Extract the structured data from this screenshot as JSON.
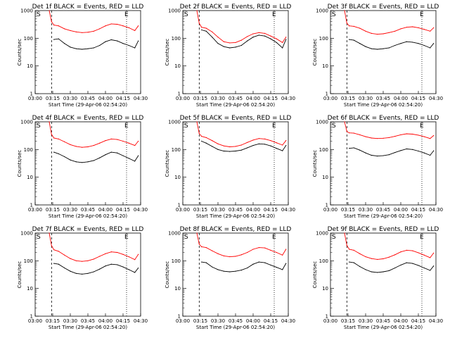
{
  "figure": {
    "ylabel": "Counts/sec",
    "xlabel": "Start Time (29-Apr-06 02:54:20)",
    "x_tick_labels": [
      "03:00",
      "03:15",
      "03:30",
      "03:45",
      "04:00",
      "04:15",
      "04:30"
    ],
    "y_tick_labels": [
      "1",
      "10",
      "100",
      "1000"
    ],
    "series_colors": {
      "events": "#000000",
      "lld": "#ff0000"
    },
    "marker_S": "S",
    "marker_E": "E"
  },
  "chart_data": [
    {
      "type": "line",
      "title": "Det 1f BLACK = Events, RED = LLD",
      "x_unit": "minutes after 03:00",
      "ylim": [
        1,
        1000
      ],
      "xlim": [
        0,
        90
      ],
      "log_y": true,
      "x": [
        12,
        14,
        16,
        20,
        25,
        30,
        35,
        40,
        45,
        50,
        55,
        60,
        65,
        70,
        75,
        80,
        85,
        88
      ],
      "series": [
        {
          "name": "Events",
          "values": [
            null,
            null,
            90,
            95,
            65,
            48,
            42,
            40,
            42,
            45,
            55,
            75,
            88,
            80,
            65,
            55,
            45,
            80
          ]
        },
        {
          "name": "LLD",
          "values": [
            1000,
            400,
            300,
            280,
            220,
            190,
            170,
            160,
            165,
            180,
            220,
            280,
            330,
            320,
            280,
            240,
            190,
            280
          ]
        }
      ]
    },
    {
      "type": "line",
      "title": "Det 2f BLACK = Events, RED = LLD",
      "x_unit": "minutes after 03:00",
      "ylim": [
        1,
        1000
      ],
      "xlim": [
        0,
        90
      ],
      "log_y": true,
      "x": [
        12,
        14,
        16,
        20,
        25,
        30,
        35,
        40,
        45,
        50,
        55,
        60,
        65,
        70,
        75,
        80,
        85,
        88
      ],
      "series": [
        {
          "name": "Events",
          "values": [
            null,
            null,
            200,
            180,
            110,
            65,
            50,
            45,
            48,
            55,
            80,
            110,
            130,
            120,
            95,
            70,
            45,
            90
          ]
        },
        {
          "name": "LLD",
          "values": [
            1000,
            350,
            250,
            230,
            170,
            110,
            75,
            68,
            70,
            85,
            115,
            145,
            160,
            150,
            120,
            95,
            70,
            110
          ]
        }
      ]
    },
    {
      "type": "line",
      "title": "Det 3f BLACK = Events, RED = LLD",
      "x_unit": "minutes after 03:00",
      "ylim": [
        1,
        1000
      ],
      "xlim": [
        0,
        90
      ],
      "log_y": true,
      "x": [
        12,
        14,
        16,
        20,
        25,
        30,
        35,
        40,
        45,
        50,
        55,
        60,
        65,
        70,
        75,
        80,
        85,
        88
      ],
      "series": [
        {
          "name": "Events",
          "values": [
            null,
            null,
            90,
            85,
            65,
            50,
            42,
            40,
            42,
            45,
            55,
            65,
            75,
            72,
            65,
            55,
            45,
            65
          ]
        },
        {
          "name": "LLD",
          "values": [
            1000,
            350,
            280,
            270,
            230,
            180,
            150,
            140,
            145,
            160,
            180,
            220,
            250,
            260,
            240,
            210,
            180,
            240
          ]
        }
      ]
    },
    {
      "type": "line",
      "title": "Det 4f BLACK = Events, RED = LLD",
      "x_unit": "minutes after 03:00",
      "ylim": [
        1,
        1000
      ],
      "xlim": [
        0,
        90
      ],
      "log_y": true,
      "x": [
        12,
        14,
        16,
        20,
        25,
        30,
        35,
        40,
        45,
        50,
        55,
        60,
        65,
        70,
        75,
        80,
        85,
        88
      ],
      "series": [
        {
          "name": "Events",
          "values": [
            null,
            null,
            80,
            70,
            55,
            42,
            36,
            34,
            36,
            40,
            50,
            65,
            80,
            75,
            60,
            48,
            38,
            60
          ]
        },
        {
          "name": "LLD",
          "values": [
            1000,
            350,
            260,
            240,
            190,
            150,
            130,
            120,
            125,
            140,
            170,
            210,
            240,
            230,
            200,
            170,
            140,
            200
          ]
        }
      ]
    },
    {
      "type": "line",
      "title": "Det 5f BLACK = Events, RED = LLD",
      "x_unit": "minutes after 03:00",
      "ylim": [
        1,
        1000
      ],
      "xlim": [
        0,
        90
      ],
      "log_y": true,
      "x": [
        12,
        14,
        16,
        20,
        25,
        30,
        35,
        40,
        45,
        50,
        55,
        60,
        65,
        70,
        75,
        80,
        85,
        88
      ],
      "series": [
        {
          "name": "Events",
          "values": [
            null,
            null,
            200,
            170,
            130,
            100,
            88,
            85,
            88,
            95,
            115,
            140,
            160,
            155,
            135,
            110,
            90,
            140
          ]
        },
        {
          "name": "LLD",
          "values": [
            1000,
            380,
            300,
            270,
            210,
            160,
            135,
            125,
            130,
            145,
            180,
            220,
            250,
            240,
            210,
            175,
            145,
            210
          ]
        }
      ]
    },
    {
      "type": "line",
      "title": "Det 6f BLACK = Events, RED = LLD",
      "x_unit": "minutes after 03:00",
      "ylim": [
        1,
        1000
      ],
      "xlim": [
        0,
        90
      ],
      "log_y": true,
      "x": [
        12,
        14,
        16,
        20,
        25,
        30,
        35,
        40,
        45,
        50,
        55,
        60,
        65,
        70,
        75,
        80,
        85,
        88
      ],
      "series": [
        {
          "name": "Events",
          "values": [
            null,
            null,
            110,
            115,
            95,
            75,
            62,
            58,
            60,
            65,
            78,
            92,
            105,
            100,
            88,
            75,
            62,
            90
          ]
        },
        {
          "name": "LLD",
          "values": [
            1000,
            450,
            400,
            390,
            340,
            290,
            260,
            250,
            255,
            270,
            300,
            340,
            370,
            360,
            330,
            290,
            250,
            320
          ]
        }
      ]
    },
    {
      "type": "line",
      "title": "Det 7f BLACK = Events, RED = LLD",
      "x_unit": "minutes after 03:00",
      "ylim": [
        1,
        1000
      ],
      "xlim": [
        0,
        90
      ],
      "log_y": true,
      "x": [
        12,
        14,
        16,
        20,
        25,
        30,
        35,
        40,
        45,
        50,
        55,
        60,
        65,
        70,
        75,
        80,
        85,
        88
      ],
      "series": [
        {
          "name": "Events",
          "values": [
            null,
            null,
            80,
            75,
            55,
            42,
            35,
            33,
            35,
            40,
            50,
            65,
            75,
            72,
            60,
            48,
            38,
            55
          ]
        },
        {
          "name": "LLD",
          "values": [
            1000,
            350,
            250,
            220,
            160,
            120,
            100,
            95,
            100,
            115,
            145,
            180,
            210,
            200,
            170,
            140,
            110,
            170
          ]
        }
      ]
    },
    {
      "type": "line",
      "title": "Det 8f BLACK = Events, RED = LLD",
      "x_unit": "minutes after 03:00",
      "ylim": [
        1,
        1000
      ],
      "xlim": [
        0,
        90
      ],
      "log_y": true,
      "x": [
        12,
        14,
        16,
        20,
        25,
        30,
        35,
        40,
        45,
        50,
        55,
        60,
        65,
        70,
        75,
        80,
        85,
        88
      ],
      "series": [
        {
          "name": "Events",
          "values": [
            null,
            null,
            90,
            85,
            60,
            48,
            42,
            40,
            42,
            46,
            55,
            75,
            90,
            85,
            70,
            58,
            48,
            80
          ]
        },
        {
          "name": "LLD",
          "values": [
            1000,
            400,
            320,
            300,
            230,
            180,
            150,
            140,
            145,
            165,
            200,
            260,
            300,
            290,
            240,
            200,
            160,
            260
          ]
        }
      ]
    },
    {
      "type": "line",
      "title": "Det 9f BLACK = Events, RED = LLD",
      "x_unit": "minutes after 03:00",
      "ylim": [
        1,
        1000
      ],
      "xlim": [
        0,
        90
      ],
      "log_y": true,
      "x": [
        12,
        14,
        16,
        20,
        25,
        30,
        35,
        40,
        45,
        50,
        55,
        60,
        65,
        70,
        75,
        80,
        85,
        88
      ],
      "series": [
        {
          "name": "Events",
          "values": [
            null,
            null,
            90,
            85,
            62,
            48,
            40,
            38,
            40,
            44,
            55,
            70,
            85,
            80,
            68,
            55,
            45,
            65
          ]
        },
        {
          "name": "LLD",
          "values": [
            1000,
            360,
            260,
            240,
            180,
            140,
            120,
            112,
            118,
            135,
            165,
            210,
            240,
            230,
            195,
            160,
            130,
            190
          ]
        }
      ]
    }
  ]
}
